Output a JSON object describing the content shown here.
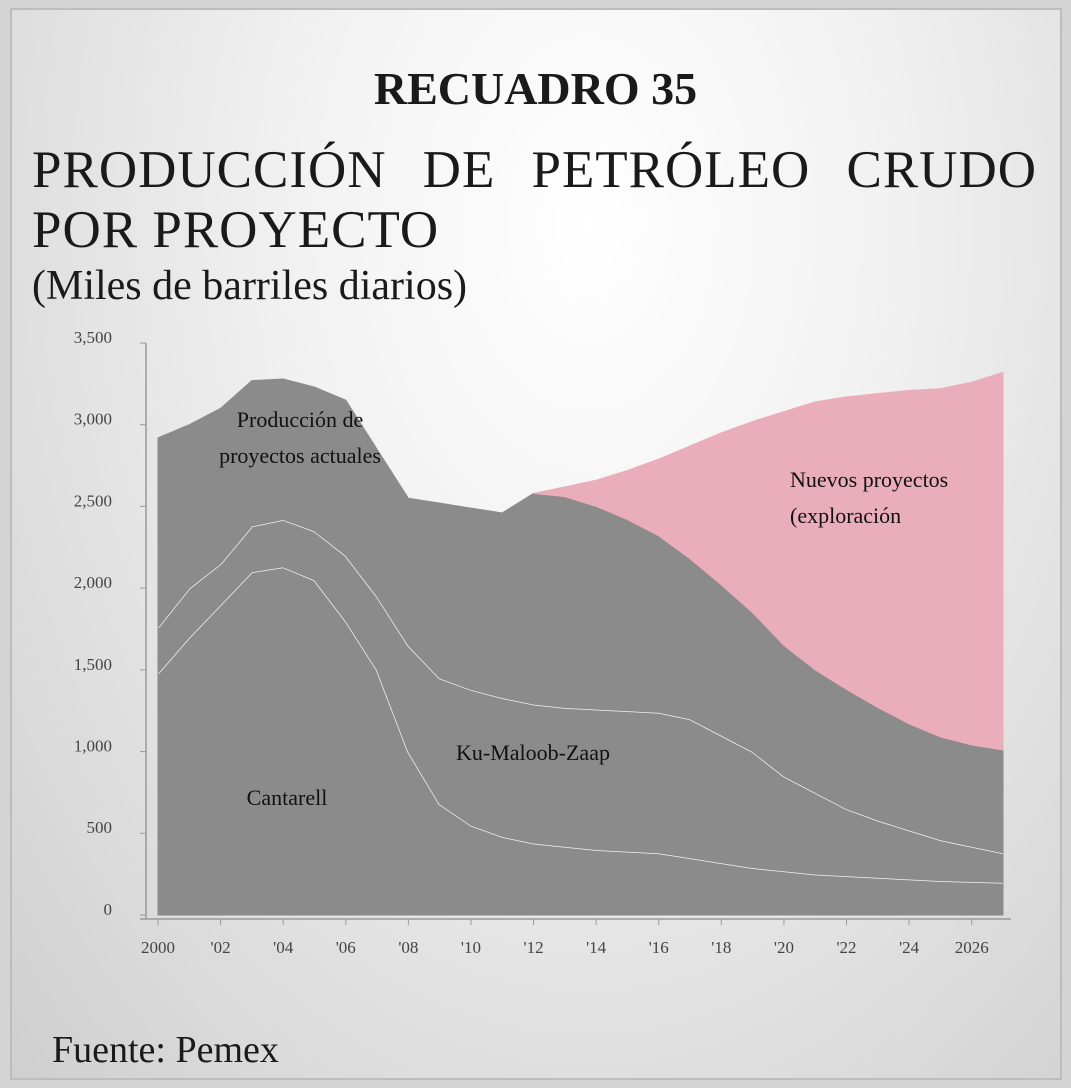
{
  "chart_data": {
    "type": "stacked_area",
    "title": "RECUADRO 35",
    "subtitle": "PRODUCCIÓN DE PETRÓLEO CRUDO POR PROYECTO",
    "y_label": "(Miles de barriles diarios)",
    "source": "Fuente: Pemex",
    "x": [
      2000,
      2001,
      2002,
      2003,
      2004,
      2005,
      2006,
      2007,
      2008,
      2009,
      2010,
      2011,
      2012,
      2013,
      2014,
      2015,
      2016,
      2017,
      2018,
      2019,
      2020,
      2021,
      2022,
      2023,
      2024,
      2025,
      2026,
      2027
    ],
    "xlim": [
      2000,
      2027
    ],
    "xticks": [
      2000,
      {
        "value": 2002,
        "label": "'02"
      },
      {
        "value": 2004,
        "label": "'04"
      },
      {
        "value": 2006,
        "label": "'06"
      },
      {
        "value": 2008,
        "label": "'08"
      },
      {
        "value": 2010,
        "label": "'10"
      },
      {
        "value": 2012,
        "label": "'12"
      },
      {
        "value": 2014,
        "label": "'14"
      },
      {
        "value": 2016,
        "label": "'16"
      },
      {
        "value": 2018,
        "label": "'18"
      },
      {
        "value": 2020,
        "label": "'20"
      },
      {
        "value": 2022,
        "label": "'22"
      },
      {
        "value": 2024,
        "label": "'24"
      },
      2026
    ],
    "ylim": [
      0,
      3500
    ],
    "yticks": [
      0,
      500,
      {
        "value": 1000,
        "label": "1,000"
      },
      {
        "value": 1500,
        "label": "1,500"
      },
      {
        "value": 2000,
        "label": "2,000"
      },
      {
        "value": 2500,
        "label": "2,500"
      },
      {
        "value": 3000,
        "label": "3,000"
      },
      {
        "value": 3500,
        "label": "3,500"
      }
    ],
    "series": [
      {
        "name": "Cantarell",
        "color": "#8b8b8b",
        "edge_color": "#f2f2f2",
        "values": [
          1480,
          1700,
          1900,
          2100,
          2130,
          2050,
          1800,
          1500,
          1000,
          680,
          550,
          480,
          440,
          420,
          400,
          390,
          380,
          350,
          320,
          290,
          270,
          250,
          240,
          230,
          220,
          210,
          205,
          200
        ]
      },
      {
        "name": "Ku-Maloob-Zaap",
        "color": "#8b8b8b",
        "edge_color": "#f2f2f2",
        "values": [
          280,
          300,
          250,
          280,
          290,
          300,
          400,
          450,
          650,
          770,
          830,
          850,
          850,
          850,
          860,
          860,
          860,
          850,
          780,
          710,
          580,
          500,
          410,
          350,
          300,
          250,
          215,
          180
        ]
      },
      {
        "name": "Producción de proyectos actuales",
        "color": "#8b8b8b",
        "values": [
          1160,
          1000,
          950,
          890,
          860,
          880,
          950,
          900,
          900,
          1070,
          1110,
          1130,
          1290,
          1290,
          1240,
          1170,
          1080,
          980,
          920,
          850,
          800,
          750,
          730,
          690,
          650,
          630,
          620,
          630
        ]
      },
      {
        "name": "Nuevos proyectos (exploración",
        "color": "#e9adbb",
        "values": [
          null,
          null,
          null,
          null,
          null,
          null,
          null,
          null,
          null,
          null,
          null,
          null,
          0,
          60,
          160,
          300,
          470,
          690,
          930,
          1170,
          1430,
          1640,
          1790,
          1920,
          2040,
          2130,
          2220,
          2310
        ]
      }
    ]
  }
}
